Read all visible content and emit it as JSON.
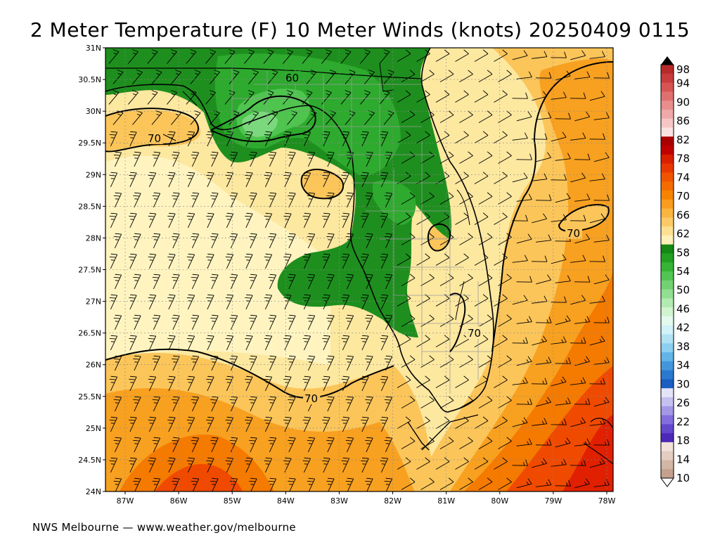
{
  "title": "2 Meter Temperature (F) 10 Meter Winds (knots) 20250409 0115",
  "footer": "NWS Melbourne — www.weather.gov/melbourne",
  "lat_ticks": [
    "31N",
    "30.5N",
    "30N",
    "29.5N",
    "29N",
    "28.5N",
    "28N",
    "27.5N",
    "27N",
    "26.5N",
    "26N",
    "25.5N",
    "25N",
    "24.5N",
    "24N"
  ],
  "lon_ticks": [
    "87W",
    "86W",
    "85W",
    "84W",
    "83W",
    "82W",
    "81W",
    "80W",
    "79W",
    "78W"
  ],
  "contour_labels": [
    "60",
    "70",
    "70",
    "70",
    "70"
  ],
  "legend": {
    "labels": [
      "98",
      "94",
      "90",
      "86",
      "82",
      "78",
      "74",
      "70",
      "66",
      "62",
      "58",
      "54",
      "50",
      "46",
      "42",
      "38",
      "34",
      "30",
      "26",
      "22",
      "18",
      "14",
      "10"
    ],
    "colors": [
      "#c8282d",
      "#dd4a4a",
      "#ea7676",
      "#f2a7a7",
      "#fbd8d8",
      "#b00000",
      "#e02000",
      "#f04a00",
      "#f57a00",
      "#f8a020",
      "#fbc55a",
      "#fde8a0",
      "#1e8f1e",
      "#2eaa2e",
      "#4fc44f",
      "#7cd87c",
      "#a8eaa8",
      "#d0f5d0",
      "#e8f8f0",
      "#b0e4f4",
      "#80c8f0",
      "#4898e0",
      "#2060d0",
      "#0a40b0",
      "#c8c8f0",
      "#a8a0e8",
      "#8878e0",
      "#6040c8",
      "#e8d0c8",
      "#d8b8a8",
      "#c8a090",
      "#b89080"
    ],
    "color_note": "palette"
  }
}
